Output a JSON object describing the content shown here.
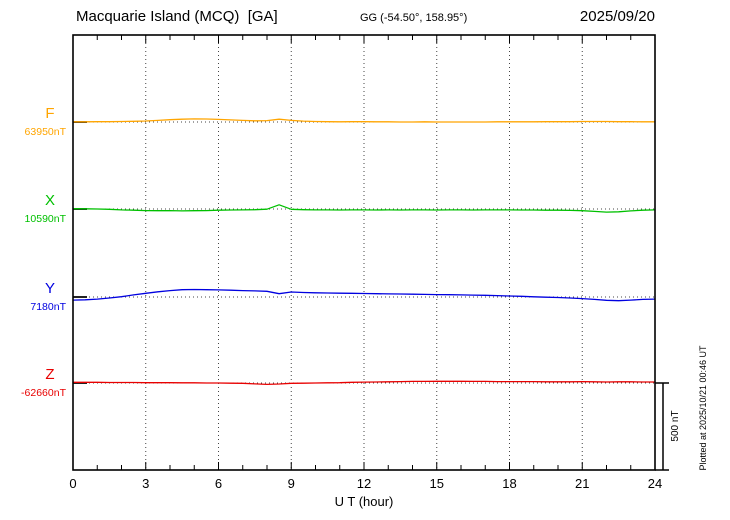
{
  "header": {
    "title": "Macquarie Island (MCQ)  [GA]",
    "coords": "GG (-54.50°, 158.95°)",
    "date": "2025/09/20"
  },
  "footer": {
    "plotted_at": "Plotted at 2025/10/21 00:46 UT"
  },
  "chart_data": {
    "type": "line",
    "title": "Macquarie Island (MCQ)  [GA]",
    "station_coords": "GG (-54.50°, 158.95°)",
    "date": "2025/09/20",
    "xlabel": "U T (hour)",
    "x_range": [
      0,
      24
    ],
    "x_ticks": [
      0,
      3,
      6,
      9,
      12,
      15,
      18,
      21,
      24
    ],
    "grid": "dotted vertical at 3h intervals, dotted horizontal baselines per trace",
    "scale_bar_nT": 500,
    "scale_bar_label": "500 nT",
    "plotted_at": "Plotted at 2025/10/21 00:46 UT",
    "x": [
      0,
      0.5,
      1,
      1.5,
      2,
      2.5,
      3,
      3.5,
      4,
      4.5,
      5,
      5.5,
      6,
      6.5,
      7,
      7.5,
      8,
      8.5,
      9,
      9.5,
      10,
      10.5,
      11,
      11.5,
      12,
      12.5,
      13,
      13.5,
      14,
      14.5,
      15,
      15.5,
      16,
      16.5,
      17,
      17.5,
      18,
      18.5,
      19,
      19.5,
      20,
      20.5,
      21,
      21.5,
      22,
      22.5,
      23,
      23.5,
      24
    ],
    "series": [
      {
        "name": "F",
        "baseline_label": "63950nT",
        "baseline": 63950,
        "color": "#ffa500",
        "values": [
          63951,
          63951,
          63952,
          63952,
          63953,
          63954,
          63956,
          63959,
          63963,
          63966,
          63968,
          63967,
          63965,
          63962,
          63959,
          63957,
          63958,
          63966,
          63959,
          63955,
          63953,
          63952,
          63951,
          63952,
          63952,
          63951,
          63951,
          63950,
          63950,
          63951,
          63950,
          63950,
          63950,
          63950,
          63950,
          63951,
          63951,
          63951,
          63951,
          63952,
          63952,
          63952,
          63953,
          63953,
          63953,
          63952,
          63952,
          63951,
          63951
        ]
      },
      {
        "name": "X",
        "baseline_label": "10590nT",
        "baseline": 10590,
        "color": "#00c000",
        "values": [
          10592,
          10591,
          10590,
          10588,
          10585,
          10583,
          10581,
          10580,
          10581,
          10579,
          10580,
          10581,
          10583,
          10584,
          10585,
          10586,
          10589,
          10614,
          10588,
          10586,
          10585,
          10585,
          10584,
          10585,
          10585,
          10584,
          10585,
          10584,
          10585,
          10585,
          10584,
          10585,
          10585,
          10584,
          10585,
          10585,
          10585,
          10584,
          10584,
          10583,
          10583,
          10582,
          10580,
          10576,
          10572,
          10574,
          10579,
          10583,
          10585
        ]
      },
      {
        "name": "Y",
        "baseline_label": "7180nT",
        "baseline": 7180,
        "color": "#0000e0",
        "values": [
          7162,
          7164,
          7168,
          7174,
          7182,
          7192,
          7201,
          7210,
          7217,
          7222,
          7223,
          7222,
          7221,
          7219,
          7217,
          7215,
          7213,
          7199,
          7209,
          7206,
          7204,
          7203,
          7202,
          7201,
          7200,
          7199,
          7198,
          7197,
          7196,
          7195,
          7194,
          7193,
          7192,
          7191,
          7190,
          7188,
          7186,
          7184,
          7181,
          7179,
          7177,
          7174,
          7171,
          7166,
          7161,
          7159,
          7162,
          7166,
          7168
        ]
      },
      {
        "name": "Z",
        "baseline_label": "-62660nT",
        "baseline": -62660,
        "color": "#e80000",
        "values": [
          -62656,
          -62656,
          -62656,
          -62657,
          -62657,
          -62657,
          -62658,
          -62658,
          -62658,
          -62659,
          -62659,
          -62660,
          -62660,
          -62661,
          -62662,
          -62665,
          -62668,
          -62666,
          -62662,
          -62661,
          -62660,
          -62659,
          -62658,
          -62656,
          -62655,
          -62654,
          -62653,
          -62652,
          -62651,
          -62651,
          -62650,
          -62650,
          -62650,
          -62651,
          -62651,
          -62652,
          -62652,
          -62652,
          -62652,
          -62653,
          -62653,
          -62653,
          -62652,
          -62653,
          -62654,
          -62653,
          -62653,
          -62654,
          -62654
        ]
      }
    ]
  }
}
